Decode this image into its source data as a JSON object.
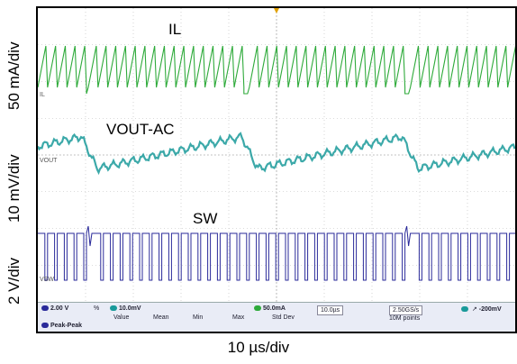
{
  "axis_labels": {
    "y_il": "50 mA/div",
    "y_vout": "10 mV/div",
    "y_sw": "2 V/div",
    "x": "10 µs/div"
  },
  "waveform_labels": {
    "il": "IL",
    "vout": "VOUT-AC",
    "sw": "SW"
  },
  "channel_markers": {
    "il": "IL",
    "vout": "VOUT",
    "sw": "VSW"
  },
  "status_bar": {
    "ch1_scale": "2.00 V",
    "ch1_extra": "%",
    "ch2_scale": "10.0mV",
    "ch3_scale": "50.0mA",
    "col_value": "Value",
    "col_mean": "Mean",
    "col_min": "Min",
    "col_max": "Max",
    "col_std": "Std Dev",
    "meas_label": "Peak-Peak",
    "timebase": "10.0µs",
    "sample_rate": "2.50GS/s",
    "record_length": "10M points",
    "trigger_level": "-200mV"
  },
  "colors": {
    "il": "#2eaa3a",
    "vout": "#1a9a9a",
    "sw": "#2a2a9a",
    "grid": "#b9b9b9",
    "trigger": "#e0a000"
  },
  "chart_data": {
    "type": "line",
    "series": [
      {
        "name": "IL",
        "shape": "sawtooth with bursts, periodic gaps ~every 30 µs"
      },
      {
        "name": "VOUT-AC",
        "shape": "sawtooth ramp with ripple, period ~30 µs"
      },
      {
        "name": "SW",
        "shape": "switching pulses, 2 V/div"
      }
    ],
    "x_unit": "µs/div",
    "x_per_div": 10,
    "grid": true
  }
}
